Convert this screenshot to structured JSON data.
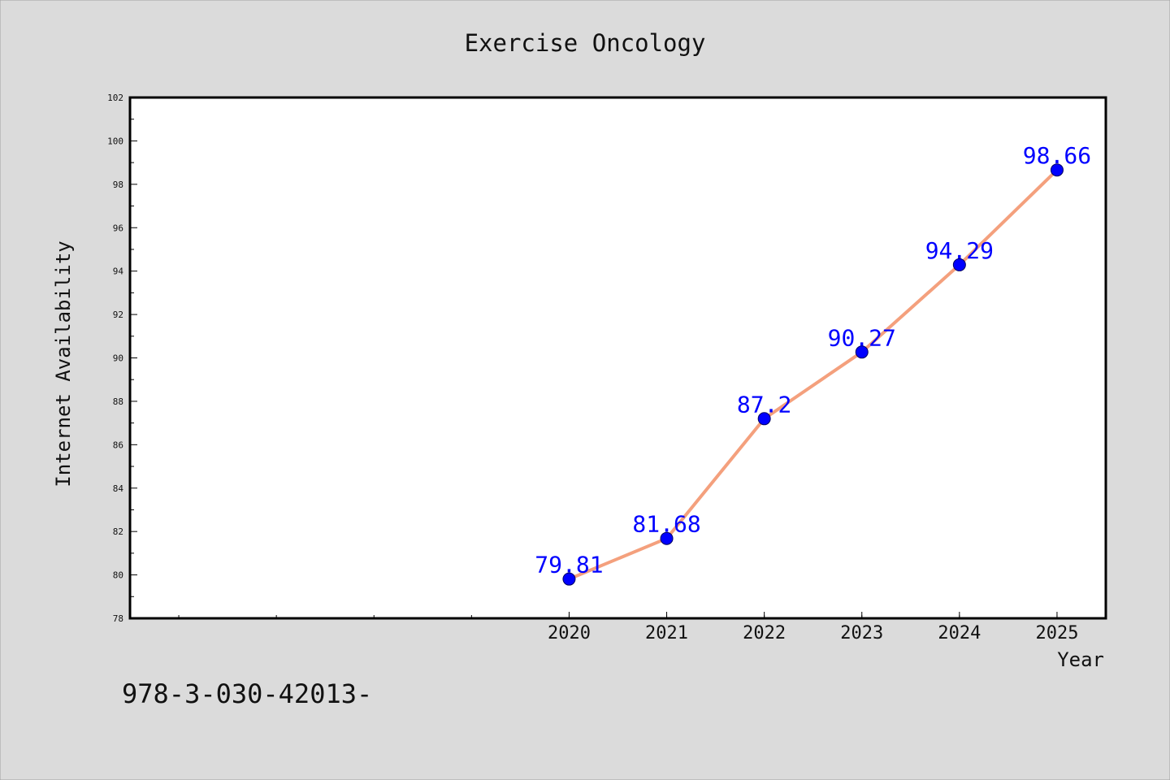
{
  "chart_data": {
    "type": "line",
    "title": "Exercise Oncology",
    "xlabel": "Year",
    "ylabel": "Internet Availability",
    "x": [
      "2020",
      "2021",
      "2022",
      "2023",
      "2024",
      "2025"
    ],
    "x_visible_range": [
      2015.5,
      2025.5
    ],
    "y_range": [
      78,
      102
    ],
    "y_ticks": [
      "78",
      "80",
      "82",
      "84",
      "86",
      "88",
      "90",
      "92",
      "94",
      "96",
      "98",
      "100",
      "102"
    ],
    "series": [
      {
        "values": [
          79.81,
          81.68,
          87.2,
          90.27,
          94.29,
          98.66
        ],
        "labels": [
          "79.81",
          "81.68",
          "87.2",
          "90.27",
          "94.29",
          "98.66"
        ]
      }
    ],
    "grid": false,
    "colors": {
      "line": "#f4a07d",
      "marker": "#0000ff",
      "label": "#0000ff",
      "background": "#dbdbdb",
      "plot": "#ffffff"
    }
  },
  "footer_text": "978-3-030-42013-"
}
